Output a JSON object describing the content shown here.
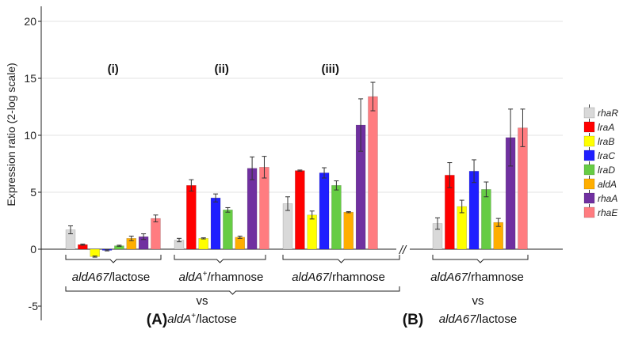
{
  "chart_data": {
    "type": "bar",
    "ylabel": "Expression ratio (2-log scale)",
    "ylim": [
      -6,
      21
    ],
    "yticks": [
      -5,
      0,
      5,
      10,
      15,
      20
    ],
    "grid": true,
    "legend_position": "right",
    "series": [
      {
        "name": "rhaR",
        "color": "#d9d9d9"
      },
      {
        "name": "lraA",
        "color": "#ff0000"
      },
      {
        "name": "lraB",
        "color": "#ffff00"
      },
      {
        "name": "lraC",
        "color": "#1f1fff"
      },
      {
        "name": "lraD",
        "color": "#66cc44"
      },
      {
        "name": "aldA",
        "color": "#ffae00"
      },
      {
        "name": "rhaA",
        "color": "#7030a0"
      },
      {
        "name": "rhaE",
        "color": "#ff7c80"
      }
    ],
    "groups": [
      {
        "id": "A-i",
        "roman": "(i)",
        "label_italic": "aldA67",
        "label_sup": "",
        "label_rest": "/lactose",
        "values": [
          1.7,
          0.4,
          -0.65,
          -0.1,
          0.3,
          0.95,
          1.1,
          2.7
        ],
        "errors": [
          0.35,
          0.05,
          0.05,
          0.05,
          0.05,
          0.2,
          0.25,
          0.3
        ]
      },
      {
        "id": "A-ii",
        "roman": "(ii)",
        "label_italic": "aldA",
        "label_sup": "+",
        "label_rest": "/rhamnose",
        "values": [
          0.8,
          5.6,
          0.95,
          4.5,
          3.45,
          1.05,
          7.1,
          7.2
        ],
        "errors": [
          0.15,
          0.5,
          0.05,
          0.35,
          0.2,
          0.1,
          1.0,
          0.95
        ]
      },
      {
        "id": "A-iii",
        "roman": "(iii)",
        "label_italic": "aldA67",
        "label_sup": "",
        "label_rest": "/rhamnose",
        "values": [
          4.0,
          6.9,
          3.0,
          6.7,
          5.6,
          3.25,
          10.9,
          13.4
        ],
        "errors": [
          0.6,
          0.05,
          0.35,
          0.45,
          0.4,
          0.05,
          2.3,
          1.25
        ]
      },
      {
        "id": "B",
        "roman": "",
        "label_italic": "aldA67",
        "label_sup": "",
        "label_rest": "/rhamnose",
        "values": [
          2.25,
          6.5,
          3.75,
          6.85,
          5.25,
          2.35,
          9.8,
          10.65
        ],
        "errors": [
          0.5,
          1.1,
          0.55,
          1.0,
          0.65,
          0.35,
          2.5,
          1.65
        ]
      }
    ],
    "comparisons": [
      {
        "panel": "(A)",
        "vs": "vs",
        "ref_italic": "aldA",
        "ref_sup": "+",
        "ref_rest": "/lactose"
      },
      {
        "panel": "(B)",
        "vs": "vs",
        "ref_italic": "aldA67",
        "ref_sup": "",
        "ref_rest": "/lactose"
      }
    ],
    "axis_break_symbol": "//"
  }
}
